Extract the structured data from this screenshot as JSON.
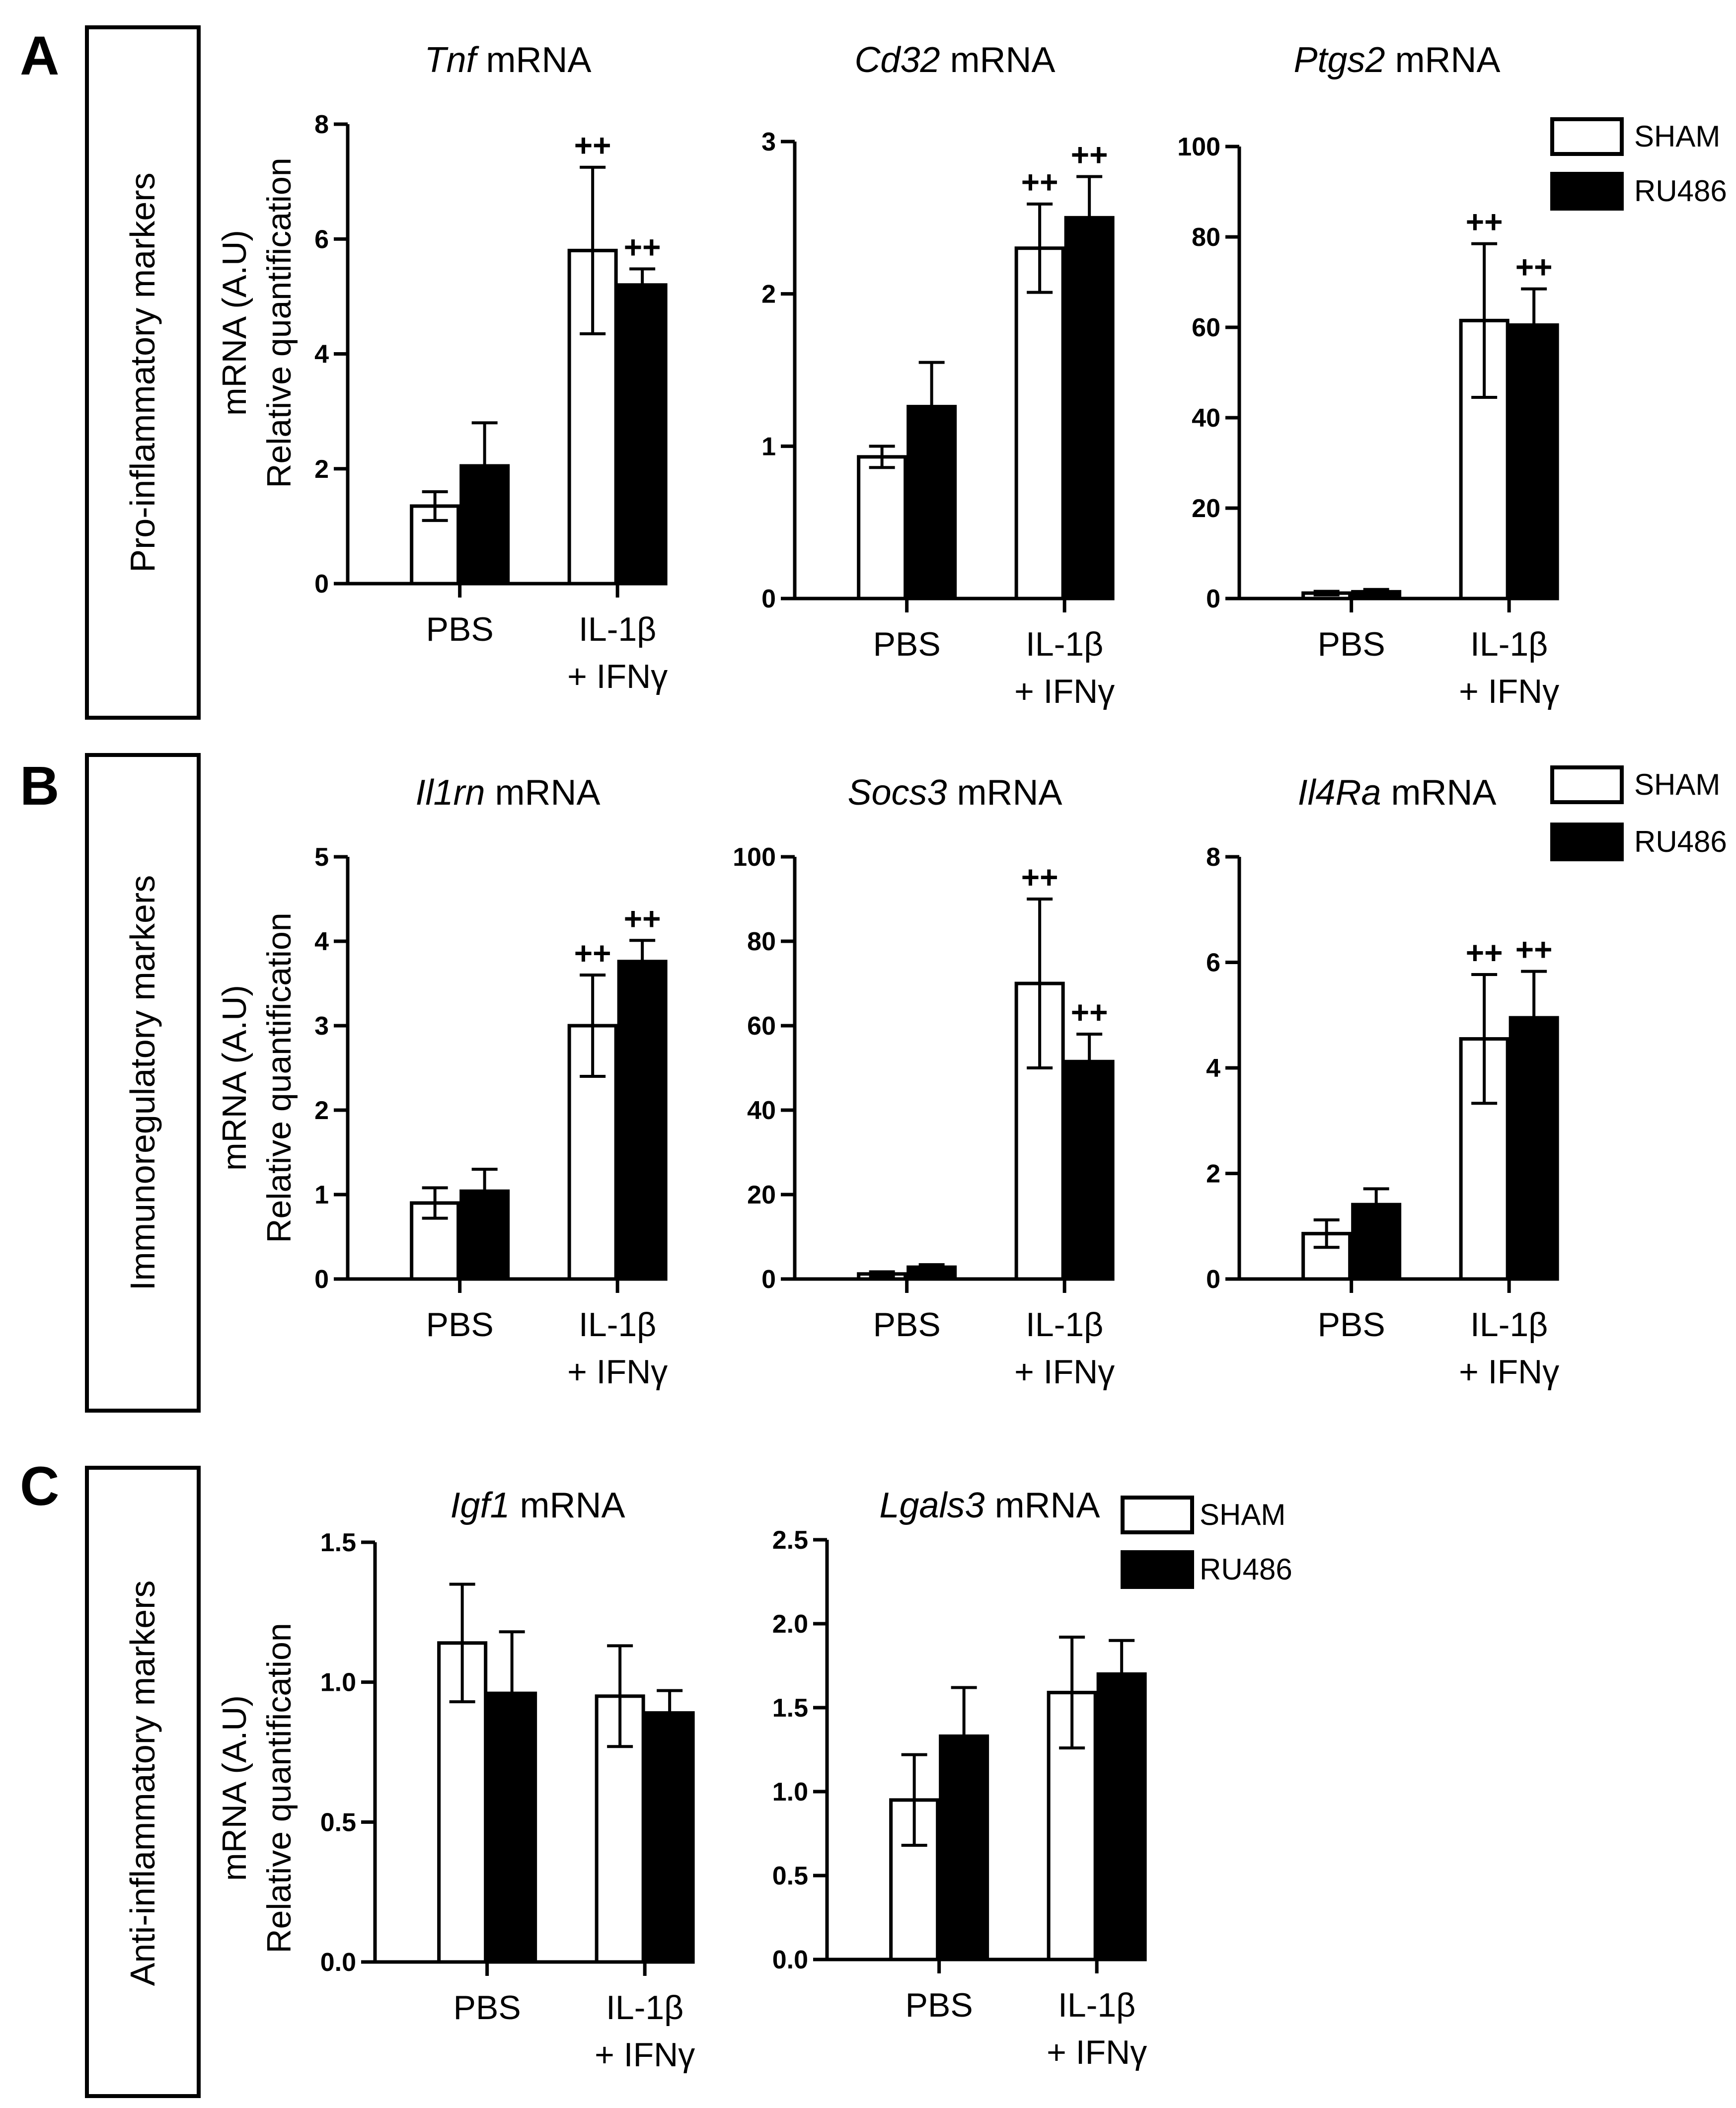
{
  "legend": [
    {
      "label": "SHAM",
      "color": "#ffffff"
    },
    {
      "label": "RU486",
      "color": "#000000"
    }
  ],
  "rows": [
    {
      "letter": "A",
      "label": "Pro-inflammatory markers"
    },
    {
      "letter": "B",
      "label": "Immunoregulatory markers"
    },
    {
      "letter": "C",
      "label": "Anti-inflammatory markers"
    }
  ],
  "y_axis_title": [
    "mRNA (A.U)",
    "Relative quantification"
  ],
  "x_category_lines": {
    "PBS": [
      "PBS"
    ],
    "IL-1β + IFNγ": [
      "IL-1β",
      "+ IFNγ"
    ]
  },
  "chart_data": [
    {
      "type": "bar",
      "title_italic": "Tnf",
      "title_rest": " mRNA",
      "categories": [
        "PBS",
        "IL-1β + IFNγ"
      ],
      "series": [
        {
          "name": "SHAM",
          "values": [
            1.35,
            5.8
          ],
          "errors": [
            0.25,
            1.45
          ]
        },
        {
          "name": "RU486",
          "values": [
            2.05,
            5.2
          ],
          "errors": [
            0.75,
            0.28
          ]
        }
      ],
      "significance": [
        [
          "",
          "++"
        ],
        [
          "",
          "++"
        ]
      ],
      "ylim": [
        0,
        8
      ],
      "yticks": [
        "0",
        "2",
        "4",
        "6",
        "8"
      ]
    },
    {
      "type": "bar",
      "title_italic": "Cd32",
      "title_rest": " mRNA",
      "categories": [
        "PBS",
        "IL-1β + IFNγ"
      ],
      "series": [
        {
          "name": "SHAM",
          "values": [
            0.93,
            2.3
          ],
          "errors": [
            0.07,
            0.29
          ]
        },
        {
          "name": "RU486",
          "values": [
            1.26,
            2.5
          ],
          "errors": [
            0.29,
            0.27
          ]
        }
      ],
      "significance": [
        [
          "",
          "++"
        ],
        [
          "",
          "++"
        ]
      ],
      "ylim": [
        0,
        3
      ],
      "yticks": [
        "0",
        "1",
        "2",
        "3"
      ]
    },
    {
      "type": "bar",
      "title_italic": "Ptgs2",
      "title_rest": " mRNA",
      "categories": [
        "PBS",
        "IL-1β + IFNγ"
      ],
      "series": [
        {
          "name": "SHAM",
          "values": [
            1.2,
            61.5
          ],
          "errors": [
            0.4,
            17
          ]
        },
        {
          "name": "RU486",
          "values": [
            1.5,
            60.5
          ],
          "errors": [
            0.5,
            8
          ]
        }
      ],
      "significance": [
        [
          "",
          "++"
        ],
        [
          "",
          "++"
        ]
      ],
      "ylim": [
        0,
        100
      ],
      "yticks": [
        "0",
        "20",
        "40",
        "60",
        "80",
        "100"
      ]
    },
    {
      "type": "bar",
      "title_italic": "Il1rn",
      "title_rest": " mRNA",
      "categories": [
        "PBS",
        "IL-1β + IFNγ"
      ],
      "series": [
        {
          "name": "SHAM",
          "values": [
            0.9,
            3.0
          ],
          "errors": [
            0.18,
            0.6
          ]
        },
        {
          "name": "RU486",
          "values": [
            1.04,
            3.76
          ],
          "errors": [
            0.26,
            0.25
          ]
        }
      ],
      "significance": [
        [
          "",
          "++"
        ],
        [
          "",
          "++"
        ]
      ],
      "ylim": [
        0,
        5
      ],
      "yticks": [
        "0",
        "1",
        "2",
        "3",
        "4",
        "5"
      ]
    },
    {
      "type": "bar",
      "title_italic": "Socs3",
      "title_rest": " mRNA",
      "categories": [
        "PBS",
        "IL-1β + IFNγ"
      ],
      "series": [
        {
          "name": "SHAM",
          "values": [
            1.2,
            70
          ],
          "errors": [
            0.5,
            20
          ]
        },
        {
          "name": "RU486",
          "values": [
            2.8,
            51.5
          ],
          "errors": [
            0.6,
            6.5
          ]
        }
      ],
      "significance": [
        [
          "",
          "++"
        ],
        [
          "",
          "++"
        ]
      ],
      "ylim": [
        0,
        100
      ],
      "yticks": [
        "0",
        "20",
        "40",
        "60",
        "80",
        "100"
      ]
    },
    {
      "type": "bar",
      "title_italic": "Il4Ra",
      "title_rest": " mRNA",
      "categories": [
        "PBS",
        "IL-1β + IFNγ"
      ],
      "series": [
        {
          "name": "SHAM",
          "values": [
            0.86,
            4.55
          ],
          "errors": [
            0.26,
            1.22
          ]
        },
        {
          "name": "RU486",
          "values": [
            1.41,
            4.95
          ],
          "errors": [
            0.3,
            0.88
          ]
        }
      ],
      "significance": [
        [
          "",
          "++"
        ],
        [
          "",
          "++"
        ]
      ],
      "ylim": [
        0,
        8
      ],
      "yticks": [
        "0",
        "2",
        "4",
        "6",
        "8"
      ]
    },
    {
      "type": "bar",
      "title_italic": "Igf1",
      "title_rest": " mRNA",
      "categories": [
        "PBS",
        "IL-1β + IFNγ"
      ],
      "series": [
        {
          "name": "SHAM",
          "values": [
            1.14,
            0.95
          ],
          "errors": [
            0.21,
            0.18
          ]
        },
        {
          "name": "RU486",
          "values": [
            0.96,
            0.89
          ],
          "errors": [
            0.22,
            0.08
          ]
        }
      ],
      "significance": [
        [
          "",
          ""
        ],
        [
          "",
          ""
        ]
      ],
      "ylim": [
        0,
        1.5
      ],
      "yticks": [
        "0.0",
        "0.5",
        "1.0",
        "1.5"
      ]
    },
    {
      "type": "bar",
      "title_italic": "Lgals3",
      "title_rest": " mRNA",
      "categories": [
        "PBS",
        "IL-1β + IFNγ"
      ],
      "series": [
        {
          "name": "SHAM",
          "values": [
            0.95,
            1.59
          ],
          "errors": [
            0.27,
            0.33
          ]
        },
        {
          "name": "RU486",
          "values": [
            1.33,
            1.7
          ],
          "errors": [
            0.29,
            0.2
          ]
        }
      ],
      "significance": [
        [
          "",
          ""
        ],
        [
          "",
          ""
        ]
      ],
      "ylim": [
        0,
        2.5
      ],
      "yticks": [
        "0.0",
        "0.5",
        "1.0",
        "1.5",
        "2.0",
        "2.5"
      ]
    }
  ]
}
